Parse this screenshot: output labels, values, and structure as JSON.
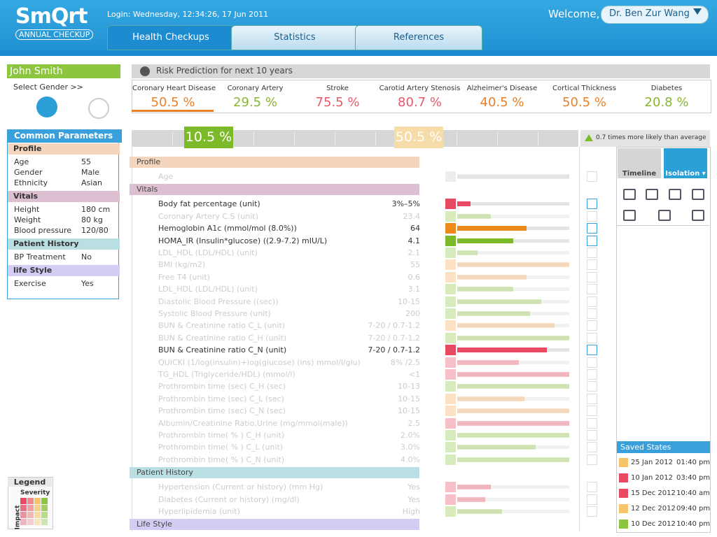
{
  "header": {
    "logo": "SmQrt",
    "logo_sub": "ANNUAL CHECKUP",
    "login": "Login: Wednesday, 12:34:26, 17 Jun 2011",
    "welcome": "Welcome,",
    "user": "Dr. Ben Zur Wang",
    "tabs": [
      "Health Checkups",
      "Statistics",
      "References"
    ]
  },
  "patient": {
    "name": "John Smith",
    "select_gender": "Select Gender  >>"
  },
  "common_parameters": {
    "title": "Common Parameters",
    "sections": [
      {
        "title": "Profile",
        "color": "#f3d6bd",
        "rows": [
          [
            "Age",
            "55"
          ],
          [
            "Gender",
            "Male"
          ],
          [
            "Ethnicity",
            "Asian"
          ]
        ]
      },
      {
        "title": "Vitals",
        "color": "#dcbfd0",
        "rows": [
          [
            "Height",
            "180 cm"
          ],
          [
            "Weight",
            "80 kg"
          ],
          [
            "Blood pressure",
            "120/80"
          ]
        ]
      },
      {
        "title": "Patient History",
        "color": "#b9dfe3",
        "rows": [
          [
            "BP Treatment",
            "No"
          ]
        ]
      },
      {
        "title": "life Style",
        "color": "#d3cdf3",
        "rows": [
          [
            "Exercise",
            "Yes"
          ]
        ]
      }
    ]
  },
  "legend": {
    "title": "Legend",
    "severity": "Severity",
    "impact": "Impact"
  },
  "risk": {
    "title": "Risk Prediction for next 10 years",
    "diseases": [
      {
        "name": "Coronary Heart Disease",
        "value": "50.5 %",
        "color": "#e8802a"
      },
      {
        "name": "Coronary Artery",
        "value": "29.5 %",
        "color": "#8ab531"
      },
      {
        "name": "Stroke",
        "value": "75.5 %",
        "color": "#e85a6a"
      },
      {
        "name": "Carotid Artery Stenosis",
        "value": "80.7 %",
        "color": "#e85a6a"
      },
      {
        "name": "Alzheimer's Disease",
        "value": "40.5 %",
        "color": "#e8802a"
      },
      {
        "name": "Cortical Thickness",
        "value": "50.5 %",
        "color": "#e8802a"
      },
      {
        "name": "Diabetes",
        "value": "20.8 %",
        "color": "#8ab531"
      }
    ],
    "marker_low": "10.5 %",
    "marker_high": "50.5 %",
    "note": "0.7 times more likely than average"
  },
  "list": [
    {
      "group": "Profile",
      "color": "#f3d6bd",
      "items": [
        {
          "name": "Age",
          "color": "#cccccc",
          "bar": 100,
          "active": false
        }
      ]
    },
    {
      "group": "Vitals",
      "color": "#dcbfd0",
      "items": [
        {
          "name": "Body fat percentage (unit)",
          "value": "3%–5%",
          "color": "#e84a64",
          "bar": 12,
          "active": true
        },
        {
          "name": "Coronary Artery C.S (unit)",
          "value": "23.4",
          "color": "#8cc63f",
          "bar": 30,
          "active": false
        },
        {
          "name": "Hemoglobin A1c (mmol/mol (8.0%))",
          "value": "64",
          "color": "#ee8a1a",
          "bar": 62,
          "active": true
        },
        {
          "name": "HOMA_IR (Insulin*glucose) ((2.9-7.2) mIU/L)",
          "value": "4.1",
          "color": "#7cba2a",
          "bar": 50,
          "active": true
        },
        {
          "name": "LDL_HDL (LDL/HDL) (unit)",
          "value": "2.1",
          "color": "#8cc63f",
          "bar": 18,
          "active": false
        },
        {
          "name": "BMI (kg/m2)",
          "value": "55",
          "color": "#f7a857",
          "bar": 100,
          "active": false
        },
        {
          "name": "Free T4 (unit)",
          "value": "0.6",
          "color": "#f7a857",
          "bar": 62,
          "active": false
        },
        {
          "name": "LDL_HDL (LDL/HDL) (unit)",
          "value": "3.1",
          "color": "#8cc63f",
          "bar": 50,
          "active": false
        },
        {
          "name": "Diastolic Blood Pressure ((sec))",
          "value": "10-15",
          "color": "#8cc63f",
          "bar": 75,
          "active": false
        },
        {
          "name": "Systolic Blood Pressure (unit)",
          "value": "200",
          "color": "#8cc63f",
          "bar": 65,
          "active": false
        },
        {
          "name": "BUN & Creatinine ratio C_L (unit)",
          "value": "7-20 / 0.7-1.2",
          "color": "#f7a857",
          "bar": 87,
          "active": false
        },
        {
          "name": "BUN & Creatinine ratio C_H (unit)",
          "value": "7-20 / 0.7-1.2",
          "color": "#8cc63f",
          "bar": 100,
          "active": false
        },
        {
          "name": "BUN & Creatinine ratio C_N (unit)",
          "value": "7-20 / 0.7-1.2",
          "color": "#e84a64",
          "bar": 80,
          "active": true
        },
        {
          "name": "QUICKI (1/log(insulin)+log(glucose) (ins) mmol/l/glu)",
          "value": "8% /2.5",
          "color": "#e84a64",
          "bar": 55,
          "active": false
        },
        {
          "name": "TG_HDL (Triglyceride/HDL) (mmol/l)",
          "value": "<1",
          "color": "#e84a64",
          "bar": 100,
          "active": false
        },
        {
          "name": "Prothrombin time (sec) C_H (sec)",
          "value": "10-13",
          "color": "#8cc63f",
          "bar": 100,
          "active": false
        },
        {
          "name": "Prothrombin time (sec) C_L (sec)",
          "value": "10-15",
          "color": "#f7a857",
          "bar": 60,
          "active": false
        },
        {
          "name": "Prothrombin time (sec) C_N (sec)",
          "value": "10-15",
          "color": "#f7a857",
          "bar": 100,
          "active": false
        },
        {
          "name": "Albumin/Creatinine Ratio,Urine (mg/mmol(male))",
          "value": "2.5",
          "color": "#e84a64",
          "bar": 100,
          "active": false
        },
        {
          "name": "Prothrombin time( % ) C_H (unit)",
          "value": "2.0%",
          "color": "#8cc63f",
          "bar": 100,
          "active": false
        },
        {
          "name": "Prothrombin time( % ) C_L (unit)",
          "value": "3.0%",
          "color": "#8cc63f",
          "bar": 70,
          "active": false
        },
        {
          "name": "Prothrombin time( % ) C_N (unit)",
          "value": "4.0%",
          "color": "#8cc63f",
          "bar": 100,
          "active": false
        }
      ]
    },
    {
      "group": "Patient History",
      "color": "#b9dfe3",
      "items": [
        {
          "name": "Hypertension (Current or history) (mm Hg)",
          "value": "Yes",
          "color": "#e84a64",
          "bar": 30,
          "active": false
        },
        {
          "name": "Diabetes (Current or history) (mg/dl)",
          "value": "Yes",
          "color": "#e84a64",
          "bar": 25,
          "active": false
        },
        {
          "name": "Hyperlipidemia (unit)",
          "value": "High",
          "color": "#8cc63f",
          "bar": 40,
          "active": false
        }
      ]
    },
    {
      "group": "Life Style",
      "color": "#d3cdf3",
      "items": []
    }
  ],
  "tools": {
    "timeline": "Timeline",
    "isolation": "Isolation ▾"
  },
  "saved_states": {
    "title": "Saved States",
    "items": [
      {
        "date": "25 Jan 2012",
        "time": "01:40 pm",
        "color": "#f7c46a"
      },
      {
        "date": "10 Jan 2012",
        "time": "03:40 pm",
        "color": "#e84a64"
      },
      {
        "date": "15 Dec 2012",
        "time": "10:40 am",
        "color": "#e84a64"
      },
      {
        "date": "12 Dec 2012",
        "time": "09:40 pm",
        "color": "#f7c46a"
      },
      {
        "date": "10 Dec 2012",
        "time": "10:40 pm",
        "color": "#8cc63f"
      }
    ]
  }
}
